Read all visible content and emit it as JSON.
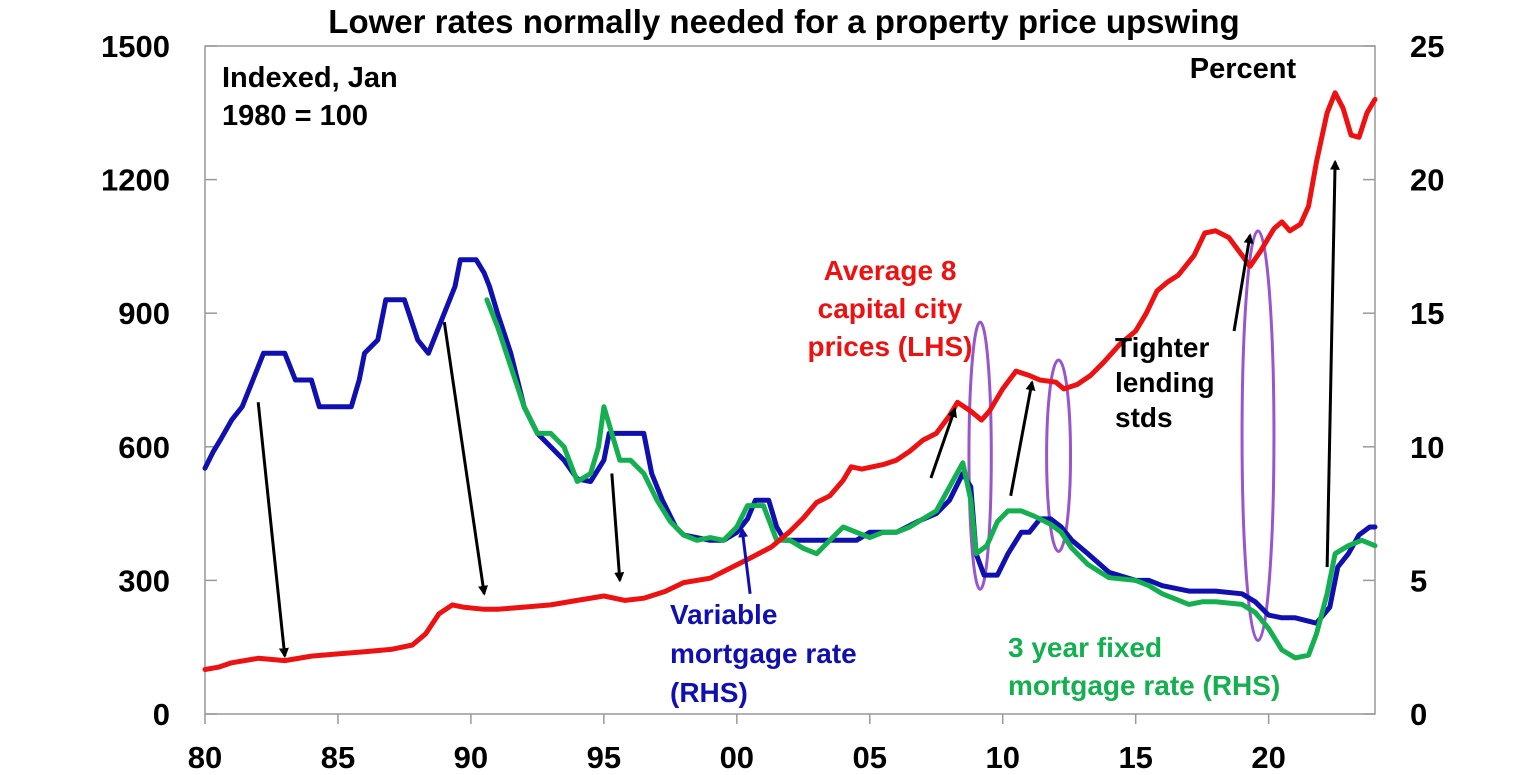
{
  "chart_data": {
    "type": "line",
    "title": "Lower rates normally needed for a property price upswing",
    "left_axis_note": [
      "Indexed, Jan",
      "1980 = 100"
    ],
    "right_axis_note": "Percent",
    "x_ticks": [
      "80",
      "85",
      "90",
      "95",
      "00",
      "05",
      "10",
      "15",
      "20"
    ],
    "left_ticks": [
      "0",
      "300",
      "600",
      "900",
      "1200",
      "1500"
    ],
    "right_ticks": [
      "0",
      "5",
      "10",
      "15",
      "20",
      "25"
    ],
    "xlim": [
      1980,
      2024
    ],
    "ylim_left": [
      0,
      1500
    ],
    "ylim_right": [
      0,
      25
    ],
    "colors": {
      "prices": "#ee1111",
      "variable": "#1010b0",
      "fixed": "#14b050",
      "arrow": "#000000",
      "ellipse": "#9955cc"
    },
    "series": [
      {
        "name": "Average 8 capital city prices (LHS)",
        "axis": "left",
        "points": [
          [
            1980,
            100
          ],
          [
            1980.5,
            105
          ],
          [
            1981,
            115
          ],
          [
            1982,
            125
          ],
          [
            1983,
            120
          ],
          [
            1984,
            130
          ],
          [
            1985,
            135
          ],
          [
            1986,
            140
          ],
          [
            1987,
            145
          ],
          [
            1987.8,
            155
          ],
          [
            1988.3,
            180
          ],
          [
            1988.8,
            225
          ],
          [
            1989.3,
            245
          ],
          [
            1989.7,
            240
          ],
          [
            1990.5,
            235
          ],
          [
            1991,
            235
          ],
          [
            1992,
            240
          ],
          [
            1993,
            245
          ],
          [
            1994,
            255
          ],
          [
            1995,
            265
          ],
          [
            1995.8,
            255
          ],
          [
            1996.5,
            260
          ],
          [
            1997.3,
            275
          ],
          [
            1998,
            295
          ],
          [
            1999,
            305
          ],
          [
            1999.5,
            320
          ],
          [
            2000.5,
            350
          ],
          [
            2001.3,
            375
          ],
          [
            2002,
            410
          ],
          [
            2002.5,
            440
          ],
          [
            2003,
            475
          ],
          [
            2003.5,
            490
          ],
          [
            2004,
            525
          ],
          [
            2004.3,
            555
          ],
          [
            2004.7,
            550
          ],
          [
            2005.5,
            560
          ],
          [
            2006,
            570
          ],
          [
            2006.5,
            590
          ],
          [
            2007,
            615
          ],
          [
            2007.5,
            630
          ],
          [
            2008,
            670
          ],
          [
            2008.3,
            700
          ],
          [
            2008.8,
            680
          ],
          [
            2009.2,
            660
          ],
          [
            2009.5,
            680
          ],
          [
            2010,
            730
          ],
          [
            2010.5,
            770
          ],
          [
            2011,
            760
          ],
          [
            2011.4,
            750
          ],
          [
            2012,
            745
          ],
          [
            2012.3,
            730
          ],
          [
            2012.8,
            740
          ],
          [
            2013.3,
            760
          ],
          [
            2013.8,
            790
          ],
          [
            2014.4,
            830
          ],
          [
            2015,
            860
          ],
          [
            2015.4,
            900
          ],
          [
            2015.8,
            950
          ],
          [
            2016.2,
            970
          ],
          [
            2016.6,
            985
          ],
          [
            2017.2,
            1030
          ],
          [
            2017.6,
            1080
          ],
          [
            2018,
            1085
          ],
          [
            2018.5,
            1070
          ],
          [
            2019,
            1030
          ],
          [
            2019.3,
            1005
          ],
          [
            2019.7,
            1040
          ],
          [
            2020.2,
            1090
          ],
          [
            2020.5,
            1105
          ],
          [
            2020.8,
            1085
          ],
          [
            2021.2,
            1100
          ],
          [
            2021.5,
            1140
          ],
          [
            2021.8,
            1240
          ],
          [
            2022.2,
            1350
          ],
          [
            2022.5,
            1395
          ],
          [
            2022.8,
            1360
          ],
          [
            2023.1,
            1300
          ],
          [
            2023.4,
            1295
          ],
          [
            2023.7,
            1350
          ],
          [
            2024,
            1380
          ]
        ]
      },
      {
        "name": "Variable mortgage rate (RHS)",
        "axis": "right",
        "points": [
          [
            1980,
            9.2
          ],
          [
            1980.3,
            9.8
          ],
          [
            1980.6,
            10.3
          ],
          [
            1981,
            11
          ],
          [
            1981.4,
            11.5
          ],
          [
            1981.8,
            12.5
          ],
          [
            1982.2,
            13.5
          ],
          [
            1983,
            13.5
          ],
          [
            1983.4,
            12.5
          ],
          [
            1984,
            12.5
          ],
          [
            1984.3,
            11.5
          ],
          [
            1985.5,
            11.5
          ],
          [
            1985.8,
            12.5
          ],
          [
            1986,
            13.5
          ],
          [
            1986.5,
            14
          ],
          [
            1986.8,
            15.5
          ],
          [
            1987.5,
            15.5
          ],
          [
            1988,
            14
          ],
          [
            1988.4,
            13.5
          ],
          [
            1988.8,
            14.5
          ],
          [
            1989,
            15
          ],
          [
            1989.4,
            16
          ],
          [
            1989.6,
            17
          ],
          [
            1990.2,
            17
          ],
          [
            1990.5,
            16.5
          ],
          [
            1990.7,
            16
          ],
          [
            1991,
            15
          ],
          [
            1991.5,
            13.5
          ],
          [
            1992,
            11.5
          ],
          [
            1992.5,
            10.5
          ],
          [
            1993,
            10
          ],
          [
            1993.5,
            9.5
          ],
          [
            1994,
            8.8
          ],
          [
            1994.5,
            8.7
          ],
          [
            1995,
            9.5
          ],
          [
            1995.2,
            10.5
          ],
          [
            1996.5,
            10.5
          ],
          [
            1996.8,
            9
          ],
          [
            1997.2,
            8
          ],
          [
            1997.7,
            7
          ],
          [
            1998,
            6.7
          ],
          [
            1999,
            6.5
          ],
          [
            1999.5,
            6.5
          ],
          [
            2000,
            6.8
          ],
          [
            2000.4,
            7.3
          ],
          [
            2000.7,
            8
          ],
          [
            2001.2,
            8
          ],
          [
            2001.5,
            7
          ],
          [
            2001.8,
            6.5
          ],
          [
            2002.5,
            6.5
          ],
          [
            2003,
            6.5
          ],
          [
            2004.5,
            6.5
          ],
          [
            2005,
            6.8
          ],
          [
            2006,
            6.8
          ],
          [
            2006.8,
            7.2
          ],
          [
            2007.5,
            7.5
          ],
          [
            2008,
            8
          ],
          [
            2008.5,
            9
          ],
          [
            2008.8,
            8.5
          ],
          [
            2009,
            6
          ],
          [
            2009.3,
            5.2
          ],
          [
            2009.8,
            5.2
          ],
          [
            2010.2,
            6
          ],
          [
            2010.7,
            6.8
          ],
          [
            2011,
            6.8
          ],
          [
            2011.4,
            7.3
          ],
          [
            2011.8,
            7.3
          ],
          [
            2012.2,
            7
          ],
          [
            2012.6,
            6.5
          ],
          [
            2013.2,
            6
          ],
          [
            2014,
            5.3
          ],
          [
            2015,
            5
          ],
          [
            2015.5,
            5
          ],
          [
            2016,
            4.8
          ],
          [
            2017,
            4.6
          ],
          [
            2018,
            4.6
          ],
          [
            2019,
            4.5
          ],
          [
            2019.5,
            4.2
          ],
          [
            2020,
            3.7
          ],
          [
            2020.5,
            3.6
          ],
          [
            2021,
            3.6
          ],
          [
            2021.8,
            3.4
          ],
          [
            2022.3,
            4
          ],
          [
            2022.6,
            5.5
          ],
          [
            2023,
            6
          ],
          [
            2023.4,
            6.7
          ],
          [
            2023.8,
            7
          ],
          [
            2024,
            7
          ]
        ]
      },
      {
        "name": "3 year fixed mortgage rate (RHS)",
        "axis": "right",
        "points": [
          [
            1990.6,
            15.5
          ],
          [
            1991,
            14.5
          ],
          [
            1991.5,
            13
          ],
          [
            1992,
            11.5
          ],
          [
            1992.5,
            10.5
          ],
          [
            1993,
            10.5
          ],
          [
            1993.5,
            10
          ],
          [
            1994,
            8.7
          ],
          [
            1994.5,
            9
          ],
          [
            1994.8,
            10
          ],
          [
            1995,
            11.5
          ],
          [
            1995.3,
            10.5
          ],
          [
            1995.6,
            9.5
          ],
          [
            1996,
            9.5
          ],
          [
            1996.5,
            9
          ],
          [
            1997,
            8
          ],
          [
            1997.5,
            7.2
          ],
          [
            1998,
            6.7
          ],
          [
            1998.5,
            6.5
          ],
          [
            1999,
            6.6
          ],
          [
            1999.5,
            6.5
          ],
          [
            2000,
            7
          ],
          [
            2000.4,
            7.8
          ],
          [
            2001,
            7.8
          ],
          [
            2001.5,
            6.5
          ],
          [
            2002,
            6.5
          ],
          [
            2002.5,
            6.2
          ],
          [
            2003,
            6
          ],
          [
            2003.5,
            6.5
          ],
          [
            2004,
            7
          ],
          [
            2004.5,
            6.8
          ],
          [
            2005,
            6.6
          ],
          [
            2005.5,
            6.8
          ],
          [
            2006,
            6.8
          ],
          [
            2006.5,
            7
          ],
          [
            2007,
            7.3
          ],
          [
            2007.5,
            7.6
          ],
          [
            2008,
            8.5
          ],
          [
            2008.5,
            9.4
          ],
          [
            2008.8,
            8
          ],
          [
            2009,
            6
          ],
          [
            2009.4,
            6.3
          ],
          [
            2009.8,
            7.2
          ],
          [
            2010.2,
            7.6
          ],
          [
            2010.7,
            7.6
          ],
          [
            2011.2,
            7.4
          ],
          [
            2011.8,
            7.1
          ],
          [
            2012.2,
            6.8
          ],
          [
            2012.6,
            6.2
          ],
          [
            2013.2,
            5.6
          ],
          [
            2014,
            5.1
          ],
          [
            2015,
            5
          ],
          [
            2015.5,
            4.8
          ],
          [
            2016,
            4.5
          ],
          [
            2016.5,
            4.3
          ],
          [
            2017,
            4.1
          ],
          [
            2017.5,
            4.2
          ],
          [
            2018,
            4.2
          ],
          [
            2019,
            4.1
          ],
          [
            2019.5,
            3.8
          ],
          [
            2020,
            3.2
          ],
          [
            2020.5,
            2.4
          ],
          [
            2021,
            2.1
          ],
          [
            2021.5,
            2.2
          ],
          [
            2021.8,
            3
          ],
          [
            2022.2,
            4.5
          ],
          [
            2022.5,
            6
          ],
          [
            2023,
            6.3
          ],
          [
            2023.5,
            6.5
          ],
          [
            2024,
            6.3
          ]
        ]
      }
    ],
    "annotations": {
      "prices_label": [
        "Average 8",
        "capital city",
        "prices (LHS)"
      ],
      "variable_label": [
        "Variable",
        "mortgage rate",
        "(RHS)"
      ],
      "fixed_label": [
        "3 year fixed",
        "mortgage rate (RHS)"
      ],
      "lending_label": [
        "Tighter",
        "lending",
        "stds"
      ]
    },
    "arrows": [
      [
        1982,
        700,
        1983,
        130
      ],
      [
        1989,
        880,
        1990.5,
        270
      ],
      [
        1995.3,
        540,
        1995.6,
        300
      ],
      [
        2000.5,
        270,
        2000.2,
        415
      ],
      [
        2007.3,
        530,
        2008.2,
        685
      ],
      [
        2010.3,
        490,
        2011.1,
        745
      ],
      [
        2018.7,
        860,
        2019.3,
        1075
      ],
      [
        2022.2,
        330,
        2022.5,
        1240
      ]
    ],
    "ellipses": [
      [
        2009.15,
        580,
        0.42,
        300
      ],
      [
        2012.1,
        580,
        0.45,
        215
      ],
      [
        2019.6,
        625,
        0.6,
        460
      ]
    ]
  }
}
